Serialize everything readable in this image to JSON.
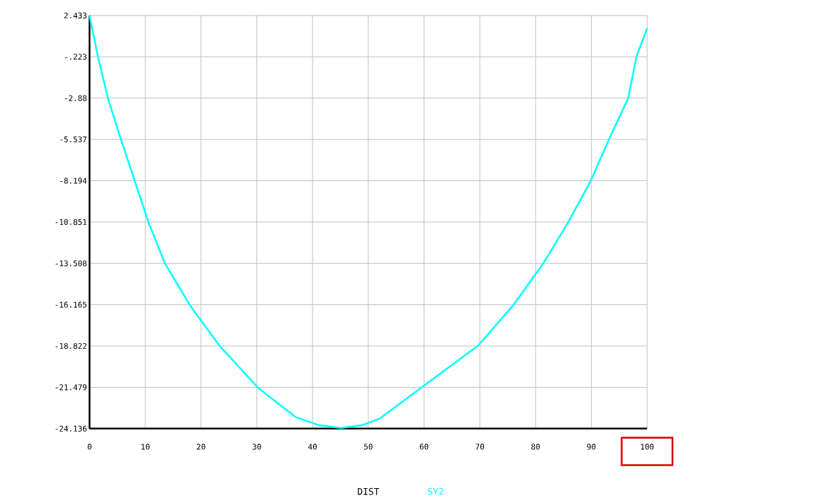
{
  "chart_data": {
    "type": "line",
    "xlabel": "DIST",
    "x": [
      0,
      1.5,
      3.3,
      5.6,
      8.1,
      10.6,
      13.5,
      18,
      23.3,
      30.2,
      37,
      41,
      45.1,
      49,
      52,
      59.5,
      69.7,
      76,
      81.4,
      85.8,
      89.9,
      93.2,
      96.6,
      98.1,
      100
    ],
    "series": [
      {
        "name": "SY2",
        "color": "#00ffff",
        "values": [
          2.4,
          -0.2,
          -2.9,
          -5.5,
          -8.2,
          -10.9,
          -13.5,
          -16.2,
          -18.8,
          -21.5,
          -23.4,
          -23.9,
          -24.1,
          -23.9,
          -23.5,
          -21.5,
          -18.8,
          -16.2,
          -13.5,
          -10.9,
          -8.2,
          -5.5,
          -2.9,
          -0.2,
          1.6
        ]
      }
    ],
    "xlim": [
      0,
      100
    ],
    "xticks": [
      0,
      10,
      20,
      30,
      40,
      50,
      60,
      70,
      80,
      90,
      100
    ],
    "ylim": [
      -24.136,
      2.433
    ],
    "yticks": [
      2.433,
      {
        "value": -0.223,
        "label": "-.223"
      },
      -2.88,
      -5.537,
      -8.194,
      -10.851,
      -13.508,
      -16.165,
      -18.822,
      -21.479,
      -24.136
    ],
    "grid": true,
    "legend": "bottom",
    "marker": "none",
    "line_style": "solid"
  }
}
